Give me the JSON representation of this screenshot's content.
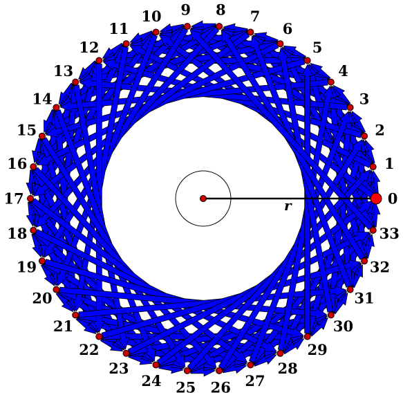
{
  "diagram": {
    "vertex_count": 34,
    "vertex_labels": [
      "0",
      "1",
      "2",
      "3",
      "4",
      "5",
      "6",
      "7",
      "8",
      "9",
      "10",
      "11",
      "12",
      "13",
      "14",
      "15",
      "16",
      "17",
      "18",
      "19",
      "20",
      "21",
      "22",
      "23",
      "24",
      "25",
      "26",
      "27",
      "28",
      "29",
      "30",
      "31",
      "32",
      "33"
    ],
    "edge_steps": [
      1,
      5,
      7,
      10
    ],
    "highlighted_vertex": "0",
    "radius_label": "r",
    "colors": {
      "edge_fill": "#0000ff",
      "edge_stroke": "#000000",
      "vertex_fill": "#cc0000",
      "highlight_fill": "#ff0000",
      "radius_line": "#000000"
    }
  }
}
